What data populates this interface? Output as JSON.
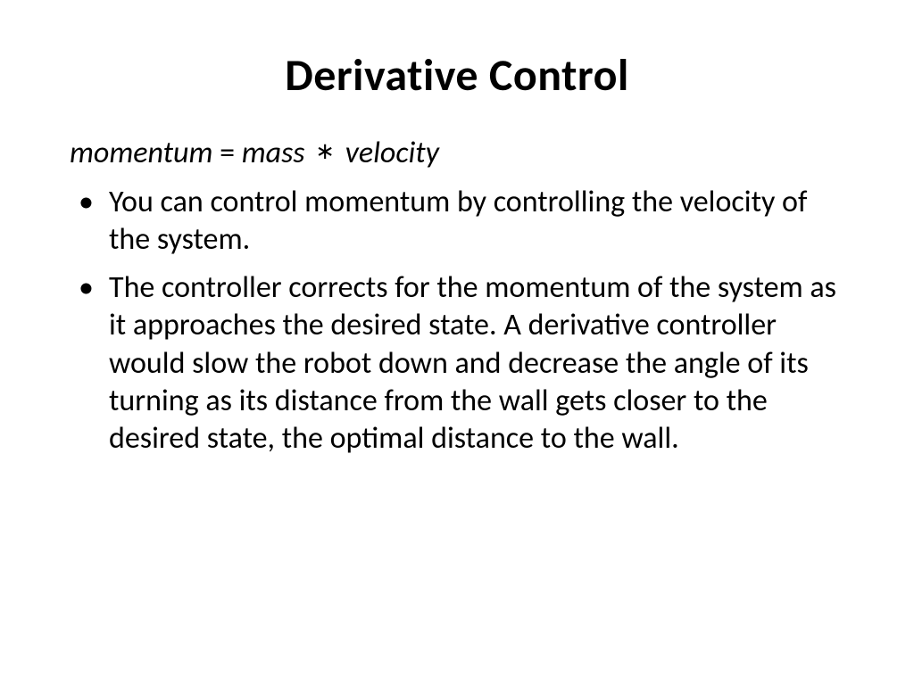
{
  "slide": {
    "title": "Derivative Control",
    "formula": {
      "lhs": "momentum",
      "eq": "=",
      "rhs1": "mass",
      "op": "∗",
      "rhs2": "velocity"
    },
    "bullets": [
      "You can control momentum by controlling the velocity of the system.",
      "The controller corrects for the momentum of the system as it approaches the desired state. A derivative controller would slow the robot down and decrease the angle of its turning as its distance from the wall gets closer to the desired state, the optimal distance to the wall."
    ],
    "colors": {
      "background": "#ffffff",
      "text": "#000000"
    },
    "typography": {
      "title_fontsize": 50,
      "title_weight": "bold",
      "body_fontsize": 34,
      "formula_fontsize": 34,
      "formula_style": "italic",
      "font_family": "Calibri"
    }
  }
}
